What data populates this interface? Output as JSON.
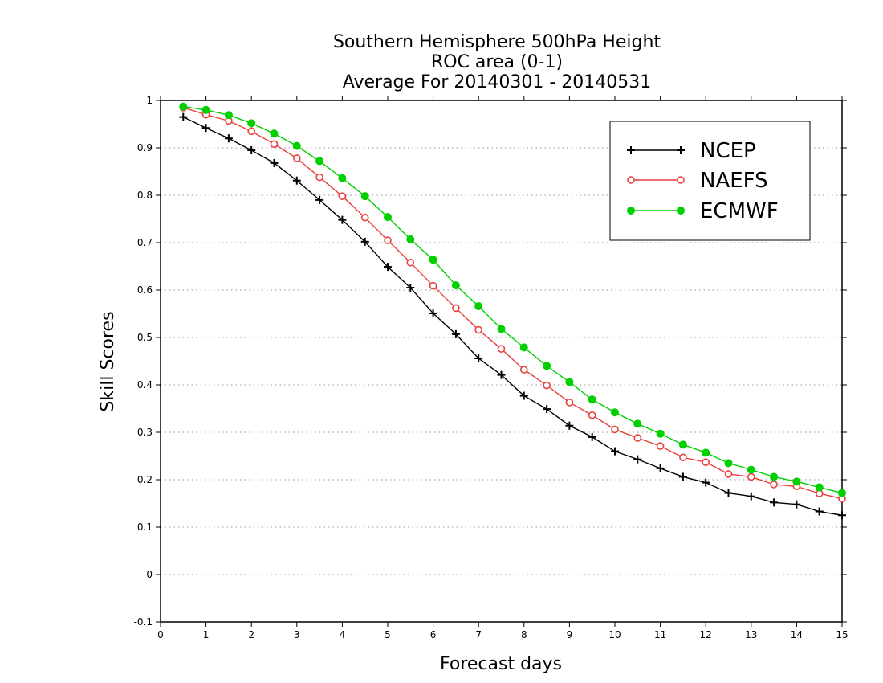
{
  "chart_data": {
    "type": "line",
    "title_lines": [
      "Southern Hemisphere 500hPa Height",
      "ROC area (0-1)",
      "Average For 20140301 - 20140531"
    ],
    "xlabel": "Forecast days",
    "ylabel": "Skill Scores",
    "xlim": [
      0,
      15
    ],
    "ylim": [
      -0.1,
      1
    ],
    "x_ticks": [
      0,
      1,
      2,
      3,
      4,
      5,
      6,
      7,
      8,
      9,
      10,
      11,
      12,
      13,
      14,
      15
    ],
    "y_ticks": [
      -0.1,
      0,
      0.1,
      0.2,
      0.3,
      0.4,
      0.5,
      0.6,
      0.7,
      0.8,
      0.9,
      1
    ],
    "y_tick_labels": [
      "-0.1",
      "0",
      "0.1",
      "0.2",
      "0.3",
      "0.4",
      "0.5",
      "0.6",
      "0.7",
      "0.8",
      "0.9",
      "1"
    ],
    "grid": "horizontal dotted",
    "legend_position": "top-right",
    "x": [
      0.5,
      1,
      1.5,
      2,
      2.5,
      3,
      3.5,
      4,
      4.5,
      5,
      5.5,
      6,
      6.5,
      7,
      7.5,
      8,
      8.5,
      9,
      9.5,
      10,
      10.5,
      11,
      11.5,
      12,
      12.5,
      13,
      13.5,
      14,
      14.5,
      15
    ],
    "series": [
      {
        "name": "NCEP",
        "color": "#000000",
        "marker": "plus",
        "values": [
          0.965,
          0.942,
          0.92,
          0.895,
          0.868,
          0.831,
          0.79,
          0.748,
          0.702,
          0.649,
          0.605,
          0.551,
          0.507,
          0.456,
          0.421,
          0.377,
          0.349,
          0.314,
          0.29,
          0.26,
          0.243,
          0.224,
          0.206,
          0.194,
          0.172,
          0.165,
          0.152,
          0.148,
          0.133,
          0.125
        ]
      },
      {
        "name": "NAEFS",
        "color": "#e8403c",
        "marker": "open-circle",
        "values": [
          0.985,
          0.97,
          0.957,
          0.935,
          0.908,
          0.878,
          0.838,
          0.798,
          0.753,
          0.705,
          0.658,
          0.609,
          0.562,
          0.516,
          0.476,
          0.432,
          0.399,
          0.363,
          0.336,
          0.306,
          0.288,
          0.271,
          0.247,
          0.237,
          0.212,
          0.206,
          0.19,
          0.186,
          0.171,
          0.16
        ]
      },
      {
        "name": "ECMWF",
        "color": "#00d000",
        "marker": "filled-circle",
        "values": [
          0.987,
          0.98,
          0.969,
          0.952,
          0.93,
          0.904,
          0.872,
          0.836,
          0.798,
          0.754,
          0.707,
          0.664,
          0.61,
          0.566,
          0.518,
          0.479,
          0.44,
          0.406,
          0.369,
          0.342,
          0.318,
          0.297,
          0.274,
          0.257,
          0.235,
          0.221,
          0.206,
          0.196,
          0.184,
          0.172
        ]
      }
    ]
  }
}
